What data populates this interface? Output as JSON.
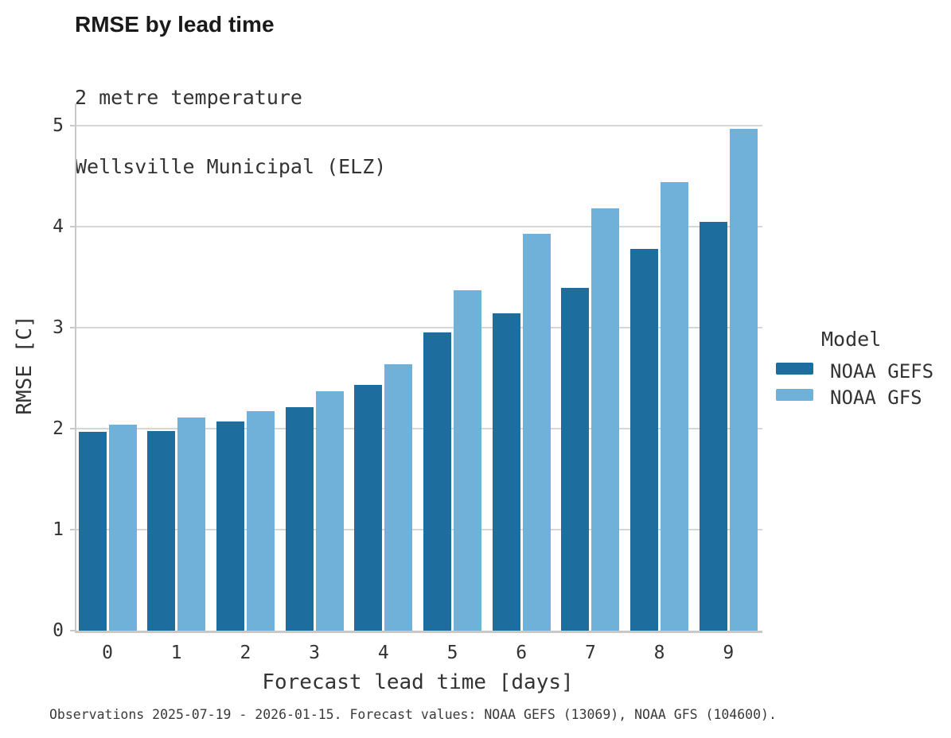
{
  "header": {
    "title": "RMSE by lead time",
    "subtitle_line1": "2 metre temperature",
    "subtitle_line2": "Wellsville Municipal (ELZ)"
  },
  "chart_data": {
    "type": "bar",
    "title": "RMSE by lead time",
    "subtitle": [
      "2 metre temperature",
      "Wellsville Municipal (ELZ)"
    ],
    "categories": [
      "0",
      "1",
      "2",
      "3",
      "4",
      "5",
      "6",
      "7",
      "8",
      "9"
    ],
    "series": [
      {
        "name": "NOAA GEFS",
        "color": "#1d6d9e",
        "values": [
          1.97,
          1.98,
          2.07,
          2.21,
          2.43,
          2.95,
          3.14,
          3.39,
          3.78,
          4.05
        ]
      },
      {
        "name": "NOAA GFS",
        "color": "#6fb1d8",
        "values": [
          2.04,
          2.11,
          2.17,
          2.37,
          2.64,
          3.37,
          3.93,
          4.18,
          4.44,
          4.97
        ]
      }
    ],
    "xlabel": "Forecast lead time [days]",
    "ylabel": "RMSE [C]",
    "ylim": [
      0,
      5.22
    ],
    "yticks": [
      0,
      1,
      2,
      3,
      4,
      5
    ],
    "grid": "horizontal",
    "legend_position": "right"
  },
  "legend": {
    "title": "Model"
  },
  "colors": {
    "gefs": "#1d6d9e",
    "gfs": "#6fb1d8",
    "gridline": "#d6d6d6",
    "axis_spine": "#c8c8c8",
    "text": "#333333"
  },
  "caption": {
    "text": "Observations 2025-07-19 - 2026-01-15. Forecast values: NOAA GEFS (13069), NOAA GFS (104600)."
  }
}
